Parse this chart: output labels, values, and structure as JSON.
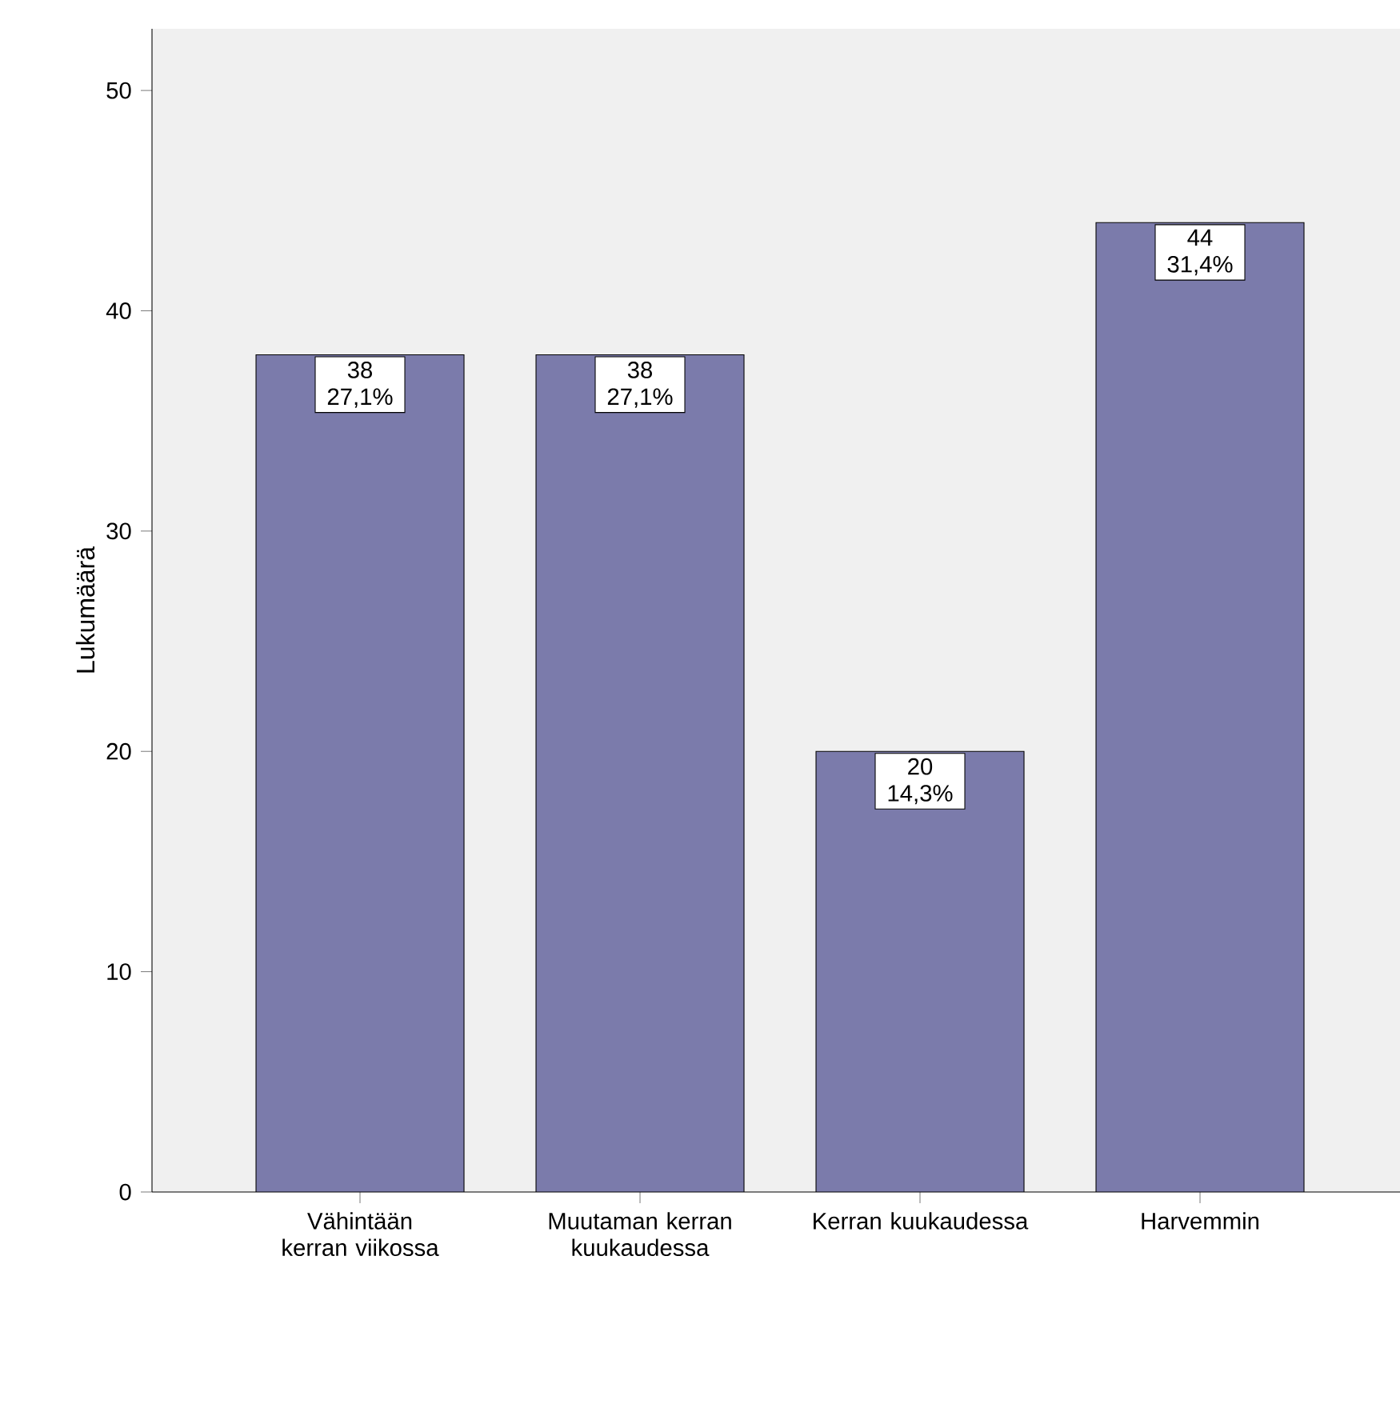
{
  "chart_data": {
    "type": "bar",
    "ylabel": "Lukumäärä",
    "categories": [
      "Vähintään kerran viikossa",
      "Muutaman kerran kuukaudessa",
      "Kerran kuukaudessa",
      "Harvemmin"
    ],
    "values": [
      38,
      38,
      20,
      44
    ],
    "value_labels": [
      "38 27,1%",
      "38 27,1%",
      "20 14,3%",
      "44 31,4%"
    ],
    "color": "#7b7bab",
    "ylim": [
      0,
      52.8
    ],
    "yticks": [
      0,
      10,
      20,
      30,
      40,
      50
    ],
    "grid": false
  }
}
